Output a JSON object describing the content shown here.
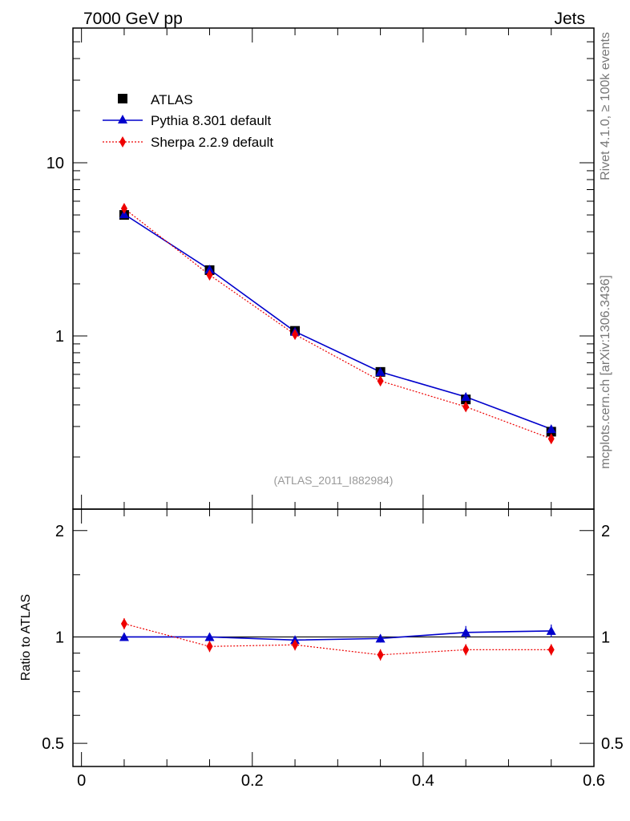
{
  "header": {
    "left_title": "7000 GeV pp",
    "right_title": "Jets"
  },
  "side_labels": {
    "rivet": "Rivet 4.1.0, ≥ 100k events",
    "mcplots": "mcplots.cern.ch [arXiv:1306.3436]"
  },
  "analysis_tag": "(ATLAS_2011_I882984)",
  "ratio_ylabel": "Ratio to ATLAS",
  "legend": {
    "atlas": "ATLAS",
    "pythia": "Pythia 8.301 default",
    "sherpa": "Sherpa 2.2.9 default"
  },
  "colors": {
    "atlas": "#000000",
    "pythia": "#0000cc",
    "sherpa": "#ee0000"
  },
  "chart_data": [
    {
      "type": "line",
      "panel": "main",
      "yscale": "log",
      "ylim": [
        0.1,
        60
      ],
      "xlim": [
        -0.01,
        0.6
      ],
      "ytick_labels": [
        "1",
        "10"
      ],
      "x": [
        0.05,
        0.15,
        0.25,
        0.35,
        0.45,
        0.55
      ],
      "series": [
        {
          "name": "ATLAS",
          "marker": "square",
          "values": [
            5.0,
            2.4,
            1.07,
            0.62,
            0.43,
            0.28
          ]
        },
        {
          "name": "Pythia 8.301 default",
          "marker": "triangle",
          "style": "solid",
          "values": [
            5.05,
            2.42,
            1.06,
            0.62,
            0.445,
            0.29
          ]
        },
        {
          "name": "Sherpa 2.2.9 default",
          "marker": "diamond",
          "style": "dotted",
          "values": [
            5.45,
            2.25,
            1.02,
            0.55,
            0.39,
            0.255
          ]
        }
      ]
    },
    {
      "type": "line",
      "panel": "ratio",
      "yscale": "log",
      "ylim": [
        0.43,
        2.3
      ],
      "xlim": [
        -0.01,
        0.6
      ],
      "ytick_labels": [
        "0.5",
        "1",
        "2"
      ],
      "xtick_labels": [
        "0",
        "0.2",
        "0.4",
        "0.6"
      ],
      "x": [
        0.05,
        0.15,
        0.25,
        0.35,
        0.45,
        0.55
      ],
      "reference": 1.0,
      "series": [
        {
          "name": "Pythia 8.301 default",
          "marker": "triangle",
          "style": "solid",
          "values": [
            1.0,
            1.0,
            0.98,
            0.99,
            1.03,
            1.04
          ]
        },
        {
          "name": "Sherpa 2.2.9 default",
          "marker": "diamond",
          "style": "dotted",
          "values": [
            1.09,
            0.94,
            0.95,
            0.89,
            0.92,
            0.92
          ]
        }
      ]
    }
  ]
}
